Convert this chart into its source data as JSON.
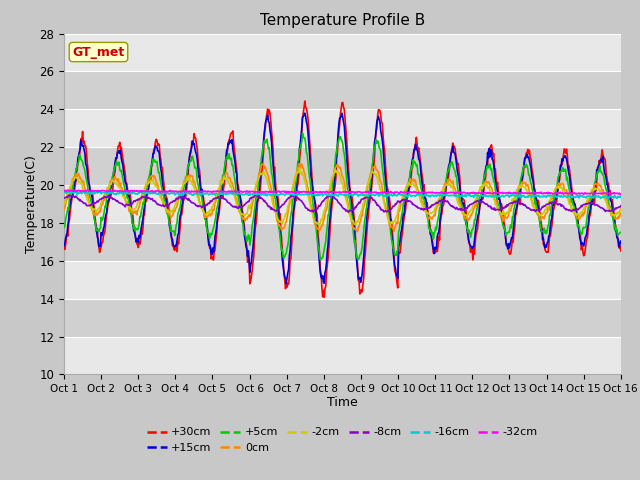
{
  "title": "Temperature Profile B",
  "xlabel": "Time",
  "ylabel": "Temperature(C)",
  "ylim": [
    10,
    28
  ],
  "xlim": [
    0,
    15
  ],
  "xtick_labels": [
    "Oct 1",
    "Oct 2",
    "Oct 3",
    "Oct 4",
    "Oct 5",
    "Oct 6",
    "Oct 7",
    "Oct 8",
    "Oct 9",
    "Oct 10",
    "Oct 11",
    "Oct 12",
    "Oct 13",
    "Oct 14",
    "Oct 15",
    "Oct 16"
  ],
  "ytick_values": [
    10,
    12,
    14,
    16,
    18,
    20,
    22,
    24,
    26,
    28
  ],
  "annotation_text": "GT_met",
  "annotation_bg": "#ffffcc",
  "annotation_fg": "#cc0000",
  "fig_bg": "#c8c8c8",
  "plot_bg_light": "#e8e8e8",
  "plot_bg_dark": "#d0d0d0",
  "series": [
    {
      "label": "+30cm",
      "color": "#ff0000",
      "lw": 1.2
    },
    {
      "label": "+15cm",
      "color": "#0000dd",
      "lw": 1.2
    },
    {
      "label": "+5cm",
      "color": "#00cc00",
      "lw": 1.2
    },
    {
      "label": "0cm",
      "color": "#ff8800",
      "lw": 1.2
    },
    {
      "label": "-2cm",
      "color": "#cccc00",
      "lw": 1.2
    },
    {
      "label": "-8cm",
      "color": "#8800cc",
      "lw": 1.2
    },
    {
      "label": "-16cm",
      "color": "#00cccc",
      "lw": 1.2
    },
    {
      "label": "-32cm",
      "color": "#ff00ff",
      "lw": 1.2
    }
  ]
}
